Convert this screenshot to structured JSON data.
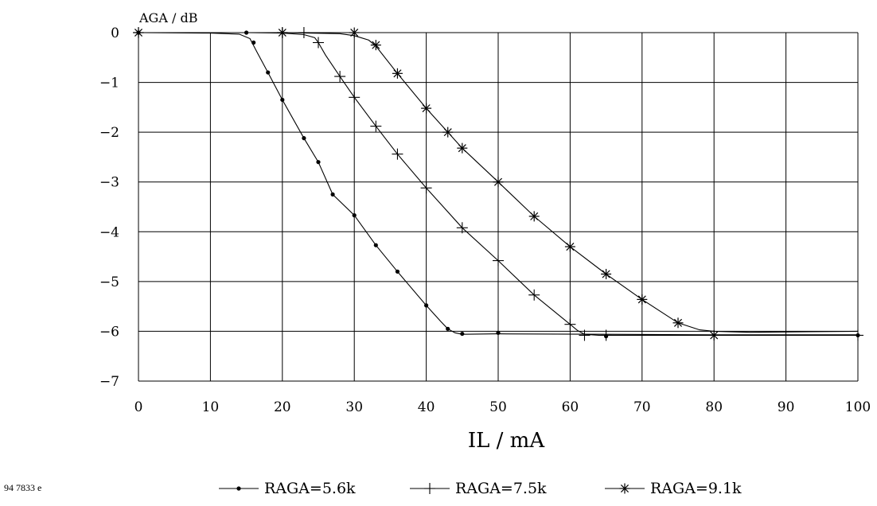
{
  "figure_id": "94 7833 e",
  "chart_data": {
    "type": "line",
    "ylabel": "AGA / dB",
    "xlabel": "IL / mA",
    "xlim": [
      0,
      100
    ],
    "ylim": [
      -7,
      0
    ],
    "xticks": [
      0,
      10,
      20,
      30,
      40,
      50,
      60,
      70,
      80,
      90,
      100
    ],
    "yticks": [
      0,
      -1,
      -2,
      -3,
      -4,
      -5,
      -6,
      -7
    ],
    "grid": true,
    "legend_position": "bottom",
    "series": [
      {
        "name": "RAGA=5.6k",
        "marker": "dot",
        "curve": [
          [
            0,
            0
          ],
          [
            10,
            -0.01
          ],
          [
            14,
            -0.03
          ],
          [
            15.5,
            -0.12
          ],
          [
            16.5,
            -0.4
          ],
          [
            18,
            -0.8
          ],
          [
            20,
            -1.35
          ],
          [
            23,
            -2.12
          ],
          [
            25,
            -2.6
          ],
          [
            27,
            -3.25
          ],
          [
            30,
            -3.67
          ],
          [
            33,
            -4.27
          ],
          [
            36,
            -4.8
          ],
          [
            40,
            -5.48
          ],
          [
            42,
            -5.8
          ],
          [
            43,
            -5.95
          ],
          [
            44,
            -6.03
          ],
          [
            45,
            -6.06
          ],
          [
            50,
            -6.05
          ],
          [
            65,
            -6.06
          ],
          [
            80,
            -6.07
          ],
          [
            100,
            -6.07
          ]
        ],
        "markers": [
          [
            0,
            0
          ],
          [
            15,
            0
          ],
          [
            16,
            -0.2
          ],
          [
            18,
            -0.8
          ],
          [
            20,
            -1.35
          ],
          [
            23,
            -2.12
          ],
          [
            25,
            -2.6
          ],
          [
            27,
            -3.25
          ],
          [
            30,
            -3.67
          ],
          [
            33,
            -4.27
          ],
          [
            36,
            -4.8
          ],
          [
            40,
            -5.48
          ],
          [
            43,
            -5.95
          ],
          [
            45,
            -6.05
          ],
          [
            50,
            -6.03
          ],
          [
            65,
            -6.1
          ],
          [
            100,
            -6.08
          ]
        ]
      },
      {
        "name": "RAGA=7.5k",
        "marker": "plus",
        "curve": [
          [
            0,
            0
          ],
          [
            15,
            0
          ],
          [
            20,
            -0.01
          ],
          [
            23,
            -0.04
          ],
          [
            24.5,
            -0.1
          ],
          [
            25,
            -0.2
          ],
          [
            26,
            -0.45
          ],
          [
            28,
            -0.88
          ],
          [
            30,
            -1.3
          ],
          [
            33,
            -1.88
          ],
          [
            36,
            -2.44
          ],
          [
            40,
            -3.12
          ],
          [
            45,
            -3.92
          ],
          [
            50,
            -4.58
          ],
          [
            55,
            -5.27
          ],
          [
            60,
            -5.86
          ],
          [
            61,
            -5.98
          ],
          [
            62,
            -6.06
          ],
          [
            64,
            -6.08
          ],
          [
            80,
            -6.08
          ],
          [
            100,
            -6.08
          ]
        ],
        "markers": [
          [
            0,
            0
          ],
          [
            20,
            0
          ],
          [
            23,
            0
          ],
          [
            25,
            -0.2
          ],
          [
            28,
            -0.88
          ],
          [
            30,
            -1.3
          ],
          [
            33,
            -1.88
          ],
          [
            36,
            -2.44
          ],
          [
            40,
            -3.12
          ],
          [
            45,
            -3.92
          ],
          [
            50,
            -4.58
          ],
          [
            55,
            -5.27
          ],
          [
            60,
            -5.86
          ],
          [
            62,
            -6.08
          ],
          [
            65,
            -6.08
          ],
          [
            100,
            -6.08
          ]
        ]
      },
      {
        "name": "RAGA=9.1k",
        "marker": "asterisk",
        "curve": [
          [
            0,
            0
          ],
          [
            20,
            0
          ],
          [
            28,
            -0.02
          ],
          [
            30,
            -0.06
          ],
          [
            32,
            -0.15
          ],
          [
            33,
            -0.27
          ],
          [
            36,
            -0.82
          ],
          [
            40,
            -1.52
          ],
          [
            43,
            -2.0
          ],
          [
            45,
            -2.32
          ],
          [
            50,
            -3.0
          ],
          [
            55,
            -3.69
          ],
          [
            60,
            -4.3
          ],
          [
            65,
            -4.85
          ],
          [
            70,
            -5.36
          ],
          [
            75,
            -5.83
          ],
          [
            78,
            -5.97
          ],
          [
            80,
            -6.0
          ],
          [
            85,
            -6.02
          ],
          [
            100,
            -6.0
          ]
        ],
        "markers": [
          [
            0,
            0
          ],
          [
            20,
            0
          ],
          [
            30,
            0
          ],
          [
            33,
            -0.25
          ],
          [
            36,
            -0.82
          ],
          [
            40,
            -1.52
          ],
          [
            43,
            -2.0
          ],
          [
            45,
            -2.32
          ],
          [
            50,
            -3.0
          ],
          [
            55,
            -3.69
          ],
          [
            60,
            -4.3
          ],
          [
            65,
            -4.85
          ],
          [
            70,
            -5.36
          ],
          [
            75,
            -5.83
          ],
          [
            80,
            -6.08
          ]
        ]
      }
    ]
  }
}
